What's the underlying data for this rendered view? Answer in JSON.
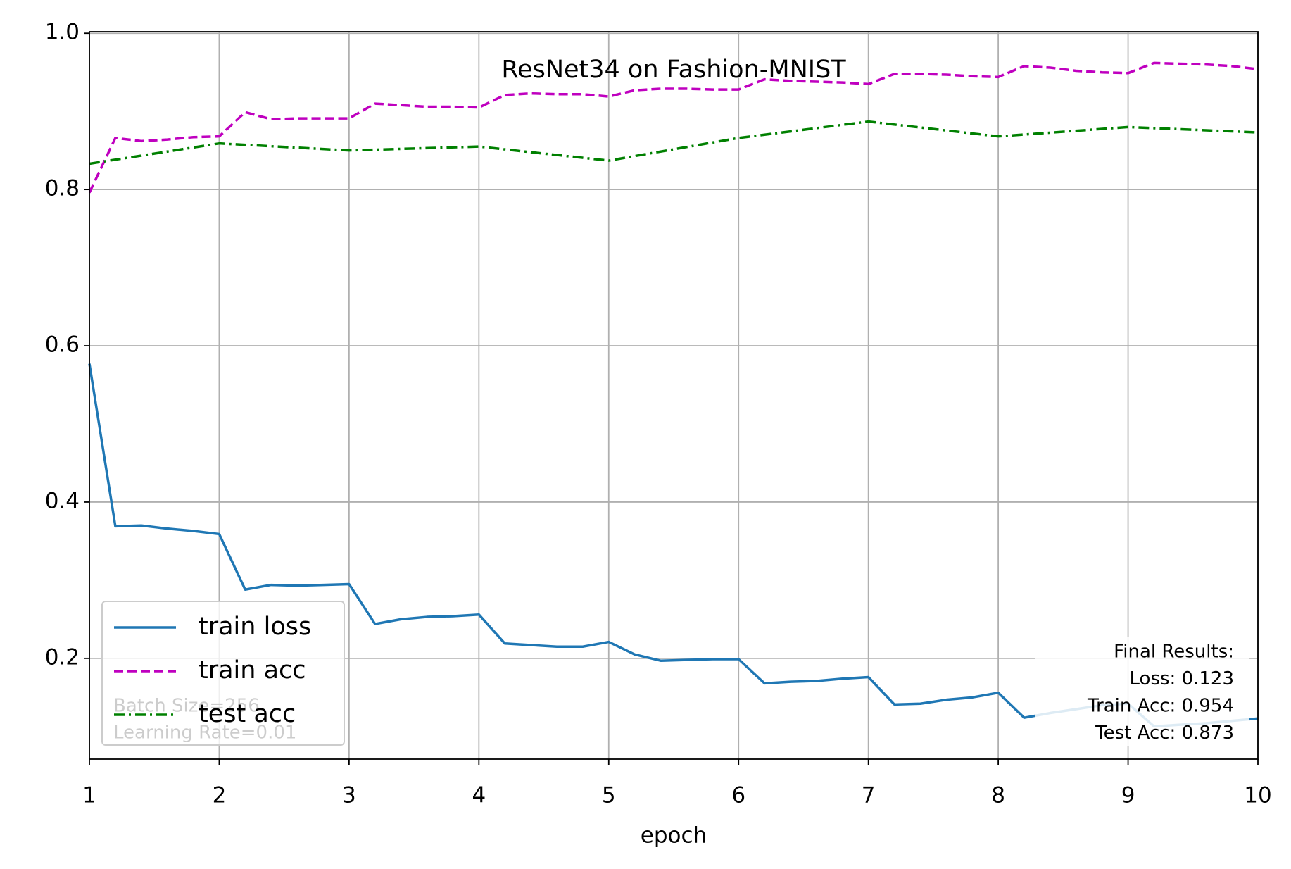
{
  "chart_data": {
    "type": "line",
    "title": "ResNet34 on Fashion-MNIST",
    "xlabel": "epoch",
    "xlim": [
      1,
      10
    ],
    "xticks": [
      1,
      2,
      3,
      4,
      5,
      6,
      7,
      8,
      9,
      10
    ],
    "ylim": [
      0.071,
      1.002
    ],
    "yticks": [
      0.2,
      0.4,
      0.6,
      0.8,
      {
        "value": 1,
        "label": "1.0"
      }
    ],
    "grid": true,
    "legend": "lower left",
    "series": [
      {
        "name": "train loss",
        "color": "#1f77b4",
        "linestyle": "solid",
        "x": [
          1,
          1.2,
          1.4,
          1.6,
          1.8,
          2,
          2.2,
          2.4,
          2.6,
          2.8,
          3,
          3.2,
          3.4,
          3.6,
          3.8,
          4,
          4.2,
          4.4,
          4.6,
          4.8,
          5,
          5.2,
          5.4,
          5.6,
          5.8,
          6,
          6.2,
          6.4,
          6.6,
          6.8,
          7,
          7.2,
          7.4,
          7.6,
          7.8,
          8,
          8.2,
          8.4,
          8.6,
          8.8,
          9,
          9.2,
          9.4,
          9.6,
          9.8,
          10
        ],
        "values": [
          0.577,
          0.369,
          0.37,
          0.366,
          0.363,
          0.359,
          0.288,
          0.294,
          0.293,
          0.294,
          0.295,
          0.244,
          0.25,
          0.253,
          0.254,
          0.256,
          0.219,
          0.217,
          0.215,
          0.215,
          0.221,
          0.205,
          0.197,
          0.198,
          0.199,
          0.199,
          0.168,
          0.17,
          0.171,
          0.174,
          0.176,
          0.141,
          0.142,
          0.147,
          0.15,
          0.156,
          0.124,
          0.13,
          0.135,
          0.14,
          0.142,
          0.113,
          0.115,
          0.117,
          0.12,
          0.123
        ]
      },
      {
        "name": "train acc",
        "color": "#bf00bf",
        "linestyle": "dashed",
        "x": [
          1,
          1.2,
          1.4,
          1.6,
          1.8,
          2,
          2.2,
          2.4,
          2.6,
          2.8,
          3,
          3.2,
          3.4,
          3.6,
          3.8,
          4,
          4.2,
          4.4,
          4.6,
          4.8,
          5,
          5.2,
          5.4,
          5.6,
          5.8,
          6,
          6.2,
          6.4,
          6.6,
          6.8,
          7,
          7.2,
          7.4,
          7.6,
          7.8,
          8,
          8.2,
          8.4,
          8.6,
          8.8,
          9,
          9.2,
          9.4,
          9.6,
          9.8,
          10
        ],
        "values": [
          0.796,
          0.866,
          0.862,
          0.864,
          0.867,
          0.868,
          0.899,
          0.89,
          0.891,
          0.891,
          0.891,
          0.91,
          0.908,
          0.906,
          0.906,
          0.905,
          0.921,
          0.923,
          0.922,
          0.922,
          0.919,
          0.927,
          0.929,
          0.929,
          0.928,
          0.928,
          0.941,
          0.939,
          0.938,
          0.937,
          0.935,
          0.948,
          0.948,
          0.947,
          0.945,
          0.944,
          0.958,
          0.956,
          0.952,
          0.95,
          0.949,
          0.962,
          0.961,
          0.96,
          0.958,
          0.954
        ]
      },
      {
        "name": "test acc",
        "color": "#008000",
        "linestyle": "dashdot",
        "x": [
          1,
          2,
          3,
          4,
          5,
          6,
          7,
          8,
          9,
          10
        ],
        "values": [
          0.833,
          0.859,
          0.85,
          0.855,
          0.837,
          0.866,
          0.887,
          0.868,
          0.88,
          0.873
        ]
      }
    ],
    "annotations": [
      "Batch Size=256",
      "Learning Rate=0.01"
    ],
    "final_results": [
      "Final Results:",
      "Loss: 0.123",
      "Train Acc: 0.954",
      "Test Acc: 0.873"
    ]
  }
}
